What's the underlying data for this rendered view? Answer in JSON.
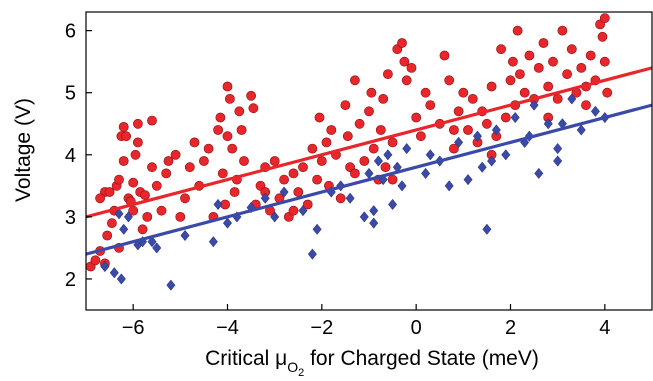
{
  "chart_data": {
    "type": "scatter",
    "xlabel_prefix": "Critical ",
    "xlabel_symbol": "μ",
    "xlabel_subscript": "O",
    "xlabel_subscript2": "2",
    "xlabel_suffix": " for Charged State (meV)",
    "ylabel": "Voltage (V)",
    "xlim": [
      -7,
      5
    ],
    "ylim": [
      1.5,
      6.3
    ],
    "xticks": [
      -6,
      -4,
      -2,
      0,
      2,
      4
    ],
    "yticks": [
      2,
      3,
      4,
      5,
      6
    ],
    "xtick_labels": [
      "−6",
      "−4",
      "−2",
      "0",
      "2",
      "4"
    ],
    "ytick_labels": [
      "2",
      "3",
      "4",
      "5",
      "6"
    ],
    "grid": false,
    "legend": "none",
    "series": [
      {
        "marker": "circle",
        "color": "#e8262b",
        "fit_line": {
          "x": [
            -7,
            5
          ],
          "y": [
            3.0,
            5.4
          ]
        },
        "points": [
          [
            -6.9,
            2.2
          ],
          [
            -6.8,
            2.3
          ],
          [
            -6.7,
            2.45
          ],
          [
            -6.6,
            2.25
          ],
          [
            -6.55,
            2.7
          ],
          [
            -6.6,
            3.4
          ],
          [
            -6.5,
            3.4
          ],
          [
            -6.45,
            2.9
          ],
          [
            -6.4,
            3.1
          ],
          [
            -6.35,
            3.5
          ],
          [
            -6.3,
            3.6
          ],
          [
            -6.25,
            4.3
          ],
          [
            -6.2,
            4.45
          ],
          [
            -6.2,
            3.9
          ],
          [
            -6.15,
            4.3
          ],
          [
            -6.1,
            3.3
          ],
          [
            -6.05,
            3.25
          ],
          [
            -6.0,
            3.1
          ],
          [
            -6.0,
            3.55
          ],
          [
            -5.95,
            4.0
          ],
          [
            -5.9,
            4.2
          ],
          [
            -5.85,
            3.4
          ],
          [
            -5.8,
            2.8
          ],
          [
            -5.75,
            3.35
          ],
          [
            -5.7,
            3.0
          ],
          [
            -5.9,
            4.5
          ],
          [
            -5.6,
            4.55
          ],
          [
            -5.5,
            3.5
          ],
          [
            -5.4,
            3.1
          ],
          [
            -5.3,
            3.7
          ],
          [
            -5.25,
            3.9
          ],
          [
            -5.1,
            4.0
          ],
          [
            -5.0,
            3.0
          ],
          [
            -4.9,
            3.3
          ],
          [
            -4.8,
            3.8
          ],
          [
            -4.7,
            4.2
          ],
          [
            -4.6,
            3.5
          ],
          [
            -4.4,
            4.1
          ],
          [
            -4.3,
            3.0
          ],
          [
            -4.2,
            4.4
          ],
          [
            -4.15,
            4.6
          ],
          [
            -4.1,
            3.7
          ],
          [
            -4.05,
            3.2
          ],
          [
            -4.0,
            4.3
          ],
          [
            -4.0,
            5.1
          ],
          [
            -3.95,
            4.9
          ],
          [
            -3.9,
            4.1
          ],
          [
            -3.85,
            3.4
          ],
          [
            -3.8,
            3.6
          ],
          [
            -3.75,
            4.7
          ],
          [
            -3.7,
            4.4
          ],
          [
            -3.65,
            3.9
          ],
          [
            -3.5,
            4.95
          ],
          [
            -3.45,
            4.75
          ],
          [
            -3.4,
            3.2
          ],
          [
            -3.3,
            3.5
          ],
          [
            -3.2,
            3.8
          ],
          [
            -3.1,
            3.1
          ],
          [
            -3.0,
            3.9
          ],
          [
            -2.9,
            3.3
          ],
          [
            -2.8,
            3.6
          ],
          [
            -2.7,
            3.0
          ],
          [
            -2.6,
            3.7
          ],
          [
            -2.5,
            3.4
          ],
          [
            -2.4,
            3.8
          ],
          [
            -2.3,
            3.2
          ],
          [
            -2.2,
            4.1
          ],
          [
            -2.1,
            3.6
          ],
          [
            -2.05,
            4.6
          ],
          [
            -2.0,
            3.9
          ],
          [
            -1.9,
            4.2
          ],
          [
            -1.85,
            3.5
          ],
          [
            -1.8,
            4.4
          ],
          [
            -1.7,
            4.0
          ],
          [
            -1.6,
            3.3
          ],
          [
            -1.5,
            4.8
          ],
          [
            -1.45,
            4.3
          ],
          [
            -1.4,
            3.8
          ],
          [
            -1.3,
            5.2
          ],
          [
            -1.2,
            4.5
          ],
          [
            -1.1,
            3.9
          ],
          [
            -1.0,
            4.7
          ],
          [
            -0.95,
            5.0
          ],
          [
            -0.9,
            4.1
          ],
          [
            -0.8,
            3.6
          ],
          [
            -0.75,
            4.4
          ],
          [
            -0.7,
            4.9
          ],
          [
            -0.65,
            3.8
          ],
          [
            -0.6,
            5.3
          ],
          [
            -0.5,
            4.2
          ],
          [
            -0.4,
            5.7
          ],
          [
            -0.3,
            5.8
          ],
          [
            -0.25,
            5.5
          ],
          [
            -0.2,
            5.2
          ],
          [
            -0.1,
            5.4
          ],
          [
            0.0,
            4.6
          ],
          [
            0.1,
            4.3
          ],
          [
            0.2,
            5.0
          ],
          [
            0.3,
            4.8
          ],
          [
            0.5,
            4.5
          ],
          [
            0.6,
            5.6
          ],
          [
            0.7,
            5.2
          ],
          [
            0.8,
            4.1
          ],
          [
            0.9,
            4.7
          ],
          [
            1.0,
            5.0
          ],
          [
            1.1,
            4.4
          ],
          [
            1.2,
            4.9
          ],
          [
            1.3,
            4.2
          ],
          [
            1.4,
            4.7
          ],
          [
            1.5,
            4.5
          ],
          [
            1.6,
            5.1
          ],
          [
            1.7,
            4.3
          ],
          [
            1.8,
            5.7
          ],
          [
            1.9,
            4.6
          ],
          [
            2.0,
            5.2
          ],
          [
            2.05,
            5.5
          ],
          [
            2.1,
            4.8
          ],
          [
            2.15,
            6.0
          ],
          [
            2.2,
            5.3
          ],
          [
            2.3,
            5.0
          ],
          [
            2.4,
            5.6
          ],
          [
            2.5,
            4.9
          ],
          [
            2.6,
            5.4
          ],
          [
            2.7,
            5.8
          ],
          [
            2.8,
            5.1
          ],
          [
            2.9,
            5.5
          ],
          [
            3.0,
            4.9
          ],
          [
            3.1,
            6.0
          ],
          [
            3.2,
            5.3
          ],
          [
            3.3,
            5.7
          ],
          [
            3.4,
            5.0
          ],
          [
            3.5,
            5.4
          ],
          [
            3.6,
            4.8
          ],
          [
            3.7,
            5.6
          ],
          [
            3.8,
            5.2
          ],
          [
            3.9,
            6.1
          ],
          [
            3.95,
            5.9
          ],
          [
            4.0,
            5.5
          ],
          [
            4.0,
            6.2
          ],
          [
            4.05,
            5.0
          ],
          [
            -6.3,
            2.5
          ],
          [
            -5.6,
            3.8
          ],
          [
            -4.5,
            3.9
          ],
          [
            -3.2,
            3.4
          ],
          [
            -2.6,
            3.1
          ],
          [
            -1.3,
            3.7
          ],
          [
            -0.5,
            3.6
          ],
          [
            0.8,
            4.4
          ],
          [
            1.6,
            4.0
          ],
          [
            2.8,
            4.6
          ],
          [
            3.6,
            5.1
          ],
          [
            -6.7,
            3.3
          ]
        ]
      },
      {
        "marker": "diamond",
        "color": "#3b4aa8",
        "fit_line": {
          "x": [
            -7,
            5
          ],
          "y": [
            2.4,
            4.8
          ]
        },
        "points": [
          [
            -6.6,
            2.2
          ],
          [
            -6.4,
            2.1
          ],
          [
            -6.25,
            2.0
          ],
          [
            -6.3,
            3.05
          ],
          [
            -6.2,
            2.8
          ],
          [
            -6.1,
            3.0
          ],
          [
            -5.9,
            2.55
          ],
          [
            -5.6,
            2.6
          ],
          [
            -5.5,
            2.5
          ],
          [
            -5.2,
            1.9
          ],
          [
            -4.9,
            2.7
          ],
          [
            -4.3,
            2.6
          ],
          [
            -4.2,
            3.2
          ],
          [
            -4.0,
            2.9
          ],
          [
            -3.8,
            3.0
          ],
          [
            -3.5,
            3.15
          ],
          [
            -3.2,
            3.3
          ],
          [
            -2.8,
            3.4
          ],
          [
            -2.4,
            3.1
          ],
          [
            -2.2,
            2.4
          ],
          [
            -2.1,
            2.8
          ],
          [
            -1.8,
            3.4
          ],
          [
            -1.6,
            3.5
          ],
          [
            -1.4,
            3.3
          ],
          [
            -1.0,
            3.7
          ],
          [
            -0.9,
            3.1
          ],
          [
            -0.8,
            3.9
          ],
          [
            -0.7,
            3.6
          ],
          [
            -0.6,
            4.0
          ],
          [
            -0.5,
            3.2
          ],
          [
            -0.4,
            3.8
          ],
          [
            -0.2,
            4.1
          ],
          [
            0.2,
            3.7
          ],
          [
            0.5,
            3.9
          ],
          [
            0.7,
            3.5
          ],
          [
            0.9,
            4.2
          ],
          [
            1.1,
            3.6
          ],
          [
            1.3,
            4.3
          ],
          [
            1.4,
            3.8
          ],
          [
            1.5,
            2.8
          ],
          [
            1.7,
            4.4
          ],
          [
            1.9,
            4.0
          ],
          [
            2.1,
            4.6
          ],
          [
            2.3,
            4.2
          ],
          [
            2.5,
            4.8
          ],
          [
            2.6,
            3.7
          ],
          [
            2.8,
            4.5
          ],
          [
            3.0,
            3.9
          ],
          [
            3.0,
            4.1
          ],
          [
            3.1,
            4.5
          ],
          [
            3.3,
            4.9
          ],
          [
            3.5,
            4.4
          ],
          [
            3.8,
            4.7
          ],
          [
            4.0,
            4.6
          ],
          [
            -1.1,
            3.0
          ],
          [
            -0.9,
            2.9
          ],
          [
            0.3,
            4.0
          ],
          [
            1.6,
            3.9
          ],
          [
            2.4,
            4.3
          ],
          [
            -5.8,
            2.6
          ],
          [
            -3.0,
            3.0
          ],
          [
            -0.3,
            3.5
          ]
        ]
      }
    ]
  }
}
